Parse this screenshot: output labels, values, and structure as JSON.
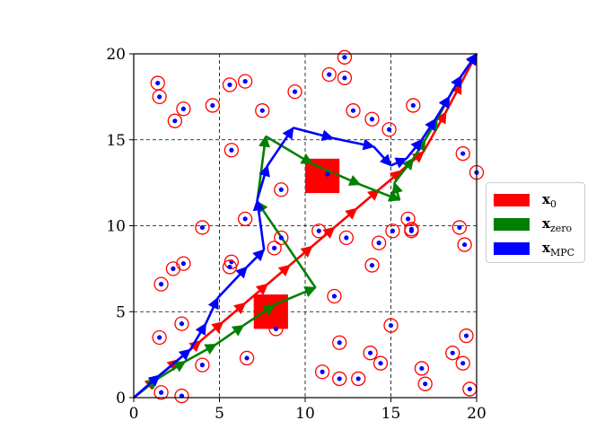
{
  "chart_data": {
    "type": "line",
    "title": "",
    "xlabel": "",
    "ylabel": "",
    "xlim": [
      0,
      20
    ],
    "ylim": [
      0,
      20
    ],
    "xticks": [
      "0",
      "5",
      "10",
      "15",
      "20"
    ],
    "yticks": [
      "0",
      "5",
      "10",
      "15",
      "20"
    ],
    "grid": true,
    "legend_position": "center-right-outside",
    "series": [
      {
        "name": "x_0",
        "label_main": "x",
        "label_sub": "0",
        "color": "#ff0000",
        "points": [
          [
            0,
            0
          ],
          [
            1.3,
            1.1
          ],
          [
            2.6,
            2.2
          ],
          [
            3.9,
            3.3
          ],
          [
            5.2,
            4.4
          ],
          [
            6.5,
            5.5
          ],
          [
            7.8,
            6.6
          ],
          [
            9.1,
            7.7
          ],
          [
            10.4,
            8.8
          ],
          [
            11.7,
            9.9
          ],
          [
            13,
            11
          ],
          [
            14.3,
            12.1
          ],
          [
            15.6,
            13.2
          ],
          [
            16.9,
            14.3
          ],
          [
            18.2,
            16.6
          ],
          [
            19.1,
            18.3
          ],
          [
            20,
            20
          ]
        ]
      },
      {
        "name": "x_zero",
        "label_main": "x",
        "label_sub": "zero",
        "color": "#008000",
        "points": [
          [
            0,
            0
          ],
          [
            1.4,
            1.1
          ],
          [
            3,
            2.1
          ],
          [
            4.8,
            3.1
          ],
          [
            6.4,
            4.2
          ],
          [
            8.2,
            5.4
          ],
          [
            10.6,
            6.4
          ],
          [
            7.2,
            11.4
          ],
          [
            7.7,
            15.2
          ],
          [
            10.4,
            13.6
          ],
          [
            13.2,
            12.4
          ],
          [
            15.5,
            11.5
          ],
          [
            15.2,
            12.5
          ],
          [
            16.3,
            13.9
          ],
          [
            17.0,
            15.0
          ],
          [
            17.7,
            16.2
          ],
          [
            18.4,
            17.5
          ],
          [
            19.1,
            18.7
          ],
          [
            20,
            20
          ]
        ]
      },
      {
        "name": "x_MPC",
        "label_main": "x",
        "label_sub": "MPC",
        "color": "#0000ff",
        "points": [
          [
            0,
            0
          ],
          [
            1.5,
            1.3
          ],
          [
            3.3,
            2.8
          ],
          [
            4.2,
            4.3
          ],
          [
            4.9,
            5.8
          ],
          [
            6.6,
            7.6
          ],
          [
            7.6,
            8.6
          ],
          [
            7.2,
            11.5
          ],
          [
            7.8,
            13.5
          ],
          [
            9.3,
            15.7
          ],
          [
            11.6,
            15.1
          ],
          [
            14.0,
            14.6
          ],
          [
            15.0,
            13.5
          ],
          [
            15.9,
            13.9
          ],
          [
            16.8,
            15.0
          ],
          [
            17.6,
            16.2
          ],
          [
            18.4,
            17.5
          ],
          [
            19.1,
            18.7
          ],
          [
            20,
            20
          ]
        ]
      }
    ],
    "obstacles": [
      [
        11.0,
        12.9
      ],
      [
        8.0,
        5.0
      ]
    ],
    "obstacles_color": "#ff0000",
    "points": [
      [
        1.4,
        18.3
      ],
      [
        1.5,
        17.5
      ],
      [
        2.4,
        16.1
      ],
      [
        2.9,
        16.8
      ],
      [
        4.6,
        17.0
      ],
      [
        5.6,
        18.2
      ],
      [
        6.5,
        18.4
      ],
      [
        7.5,
        16.7
      ],
      [
        9.4,
        17.8
      ],
      [
        11.4,
        18.8
      ],
      [
        12.3,
        19.8
      ],
      [
        12.3,
        18.6
      ],
      [
        12.8,
        16.7
      ],
      [
        13.9,
        16.2
      ],
      [
        14.9,
        15.6
      ],
      [
        16.3,
        17.0
      ],
      [
        19.2,
        14.2
      ],
      [
        20,
        13.1
      ],
      [
        5.7,
        14.4
      ],
      [
        8.6,
        12.1
      ],
      [
        11.3,
        13.0
      ],
      [
        4.0,
        9.9
      ],
      [
        6.5,
        10.4
      ],
      [
        5.7,
        7.9
      ],
      [
        5.6,
        7.6
      ],
      [
        8.2,
        8.7
      ],
      [
        8.6,
        9.3
      ],
      [
        10.8,
        9.7
      ],
      [
        12.4,
        9.3
      ],
      [
        14.3,
        9.0
      ],
      [
        13.9,
        7.7
      ],
      [
        15.1,
        9.7
      ],
      [
        16.0,
        10.4
      ],
      [
        16.2,
        9.7
      ],
      [
        16.2,
        9.8
      ],
      [
        19.0,
        9.9
      ],
      [
        19.3,
        8.9
      ],
      [
        1.6,
        6.6
      ],
      [
        2.3,
        7.5
      ],
      [
        2.9,
        7.8
      ],
      [
        2.8,
        4.3
      ],
      [
        1.5,
        3.5
      ],
      [
        4.0,
        1.9
      ],
      [
        6.6,
        2.3
      ],
      [
        8.3,
        4.0
      ],
      [
        11.7,
        5.9
      ],
      [
        12.0,
        3.2
      ],
      [
        11.0,
        1.5
      ],
      [
        12.0,
        1.1
      ],
      [
        13.1,
        1.1
      ],
      [
        13.8,
        2.6
      ],
      [
        14.4,
        2.0
      ],
      [
        15.0,
        4.2
      ],
      [
        16.8,
        1.7
      ],
      [
        17.0,
        0.8
      ],
      [
        18.6,
        2.6
      ],
      [
        19.2,
        2.0
      ],
      [
        19.4,
        3.6
      ],
      [
        19.6,
        0.5
      ],
      [
        1.6,
        0.3
      ],
      [
        2.8,
        0.1
      ]
    ],
    "point_color": "#0000ff",
    "ring_color": "#ff0000"
  }
}
